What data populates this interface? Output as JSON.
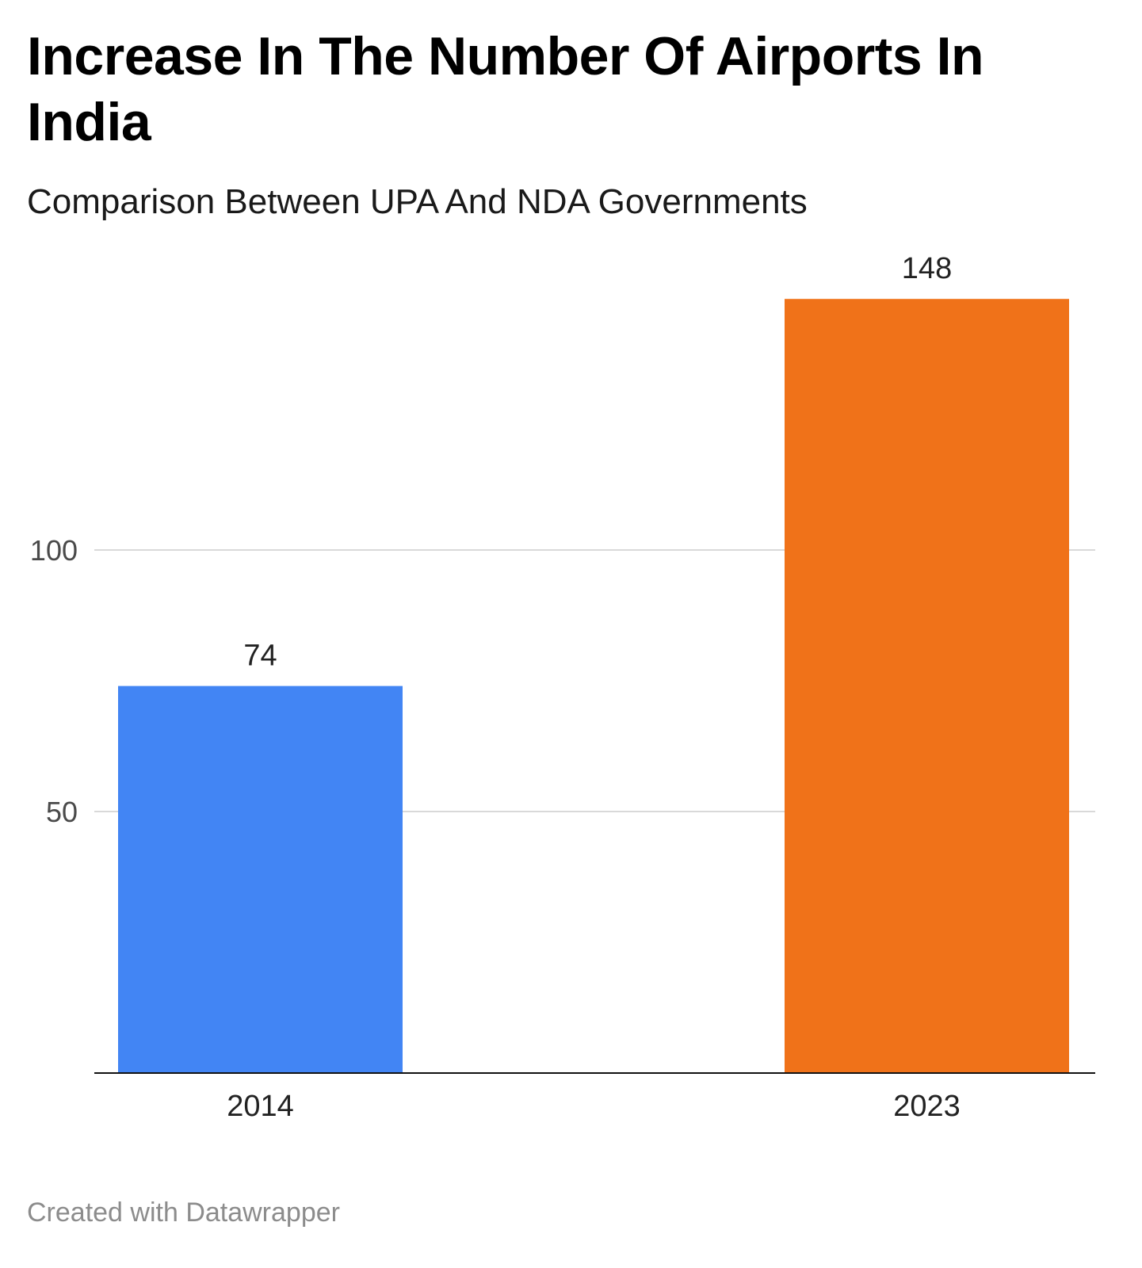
{
  "chart_data": {
    "type": "bar",
    "title": "Increase In The Number Of Airports In India",
    "subtitle": "Comparison Between UPA And NDA Governments",
    "categories": [
      "2014",
      "2023"
    ],
    "values": [
      74,
      148
    ],
    "value_labels": [
      "74",
      "148"
    ],
    "colors": [
      "#4285f4",
      "#f07219"
    ],
    "ylim": [
      0,
      148
    ],
    "yticks": [
      50,
      100
    ],
    "ytick_labels": [
      "50",
      "100"
    ],
    "xlabel": "",
    "ylabel": "",
    "grid": true
  },
  "footer": {
    "credit": "Created with Datawrapper"
  }
}
